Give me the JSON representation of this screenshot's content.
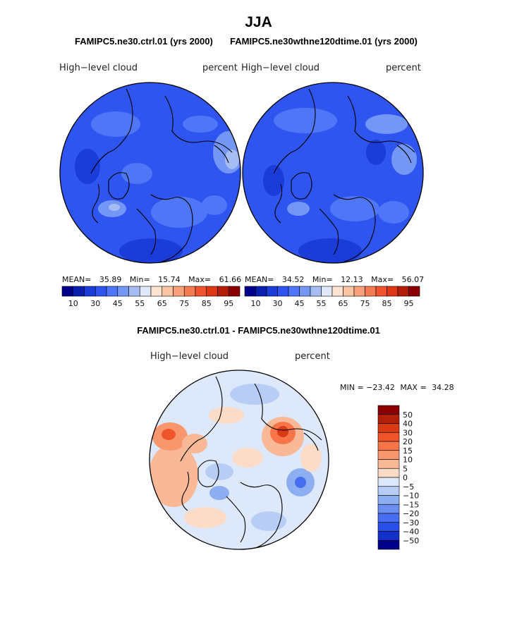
{
  "title": "JJA",
  "panels": [
    {
      "case_title": "FAMIPC5.ne30.ctrl.01 (yrs 2000)",
      "variable": "High−level cloud",
      "units": "percent",
      "stats": {
        "mean_label": "MEAN=",
        "mean": "35.89",
        "min_label": "Min=",
        "min": "15.74",
        "max_label": "Max=",
        "max": "61.66"
      }
    },
    {
      "case_title": "FAMIPC5.ne30wthne120dtime.01 (yrs 2000)",
      "variable": "High−level cloud",
      "units": "percent",
      "stats": {
        "mean_label": "MEAN=",
        "mean": "34.52",
        "min_label": "Min=",
        "min": "12.13",
        "max_label": "Max=",
        "max": "56.07"
      }
    }
  ],
  "abs_colorbar": {
    "colors": [
      "#00008b",
      "#0a1fb0",
      "#1a3cd8",
      "#2f55f0",
      "#4f76f7",
      "#7497f5",
      "#a6bdf3",
      "#dfe9f8",
      "#fde3d2",
      "#fbc4a3",
      "#f8a07a",
      "#f57c52",
      "#f05530",
      "#dc3816",
      "#b41e08",
      "#8b0000"
    ],
    "tick_labels": [
      "10",
      "30",
      "45",
      "55",
      "65",
      "75",
      "85",
      "95"
    ]
  },
  "difference": {
    "title": "FAMIPC5.ne30.ctrl.01 - FAMIPC5.ne30wthne120dtime.01",
    "variable": "High−level cloud",
    "units": "percent",
    "min_label": "MIN = ",
    "min": "−23.42",
    "max_label": "MAX = ",
    "max": "34.28",
    "colorbar": {
      "colors": [
        "#8b0000",
        "#b3200a",
        "#d93a14",
        "#f0542a",
        "#f77549",
        "#f8966e",
        "#f9b896",
        "#fcdcc6",
        "#dde8fa",
        "#b7cdf6",
        "#8eaef2",
        "#6a8ff0",
        "#476ef0",
        "#2a4fe8",
        "#1330c8",
        "#00008b"
      ],
      "tick_labels": [
        "50",
        "40",
        "30",
        "20",
        "15",
        "10",
        "5",
        "0",
        "−5",
        "−10",
        "−15",
        "−20",
        "−30",
        "−40",
        "−50"
      ]
    }
  },
  "chart_data": [
    {
      "type": "heatmap",
      "projection": "polar-stereographic (north pole)",
      "title": "FAMIPC5.ne30.ctrl.01 (yrs 2000)",
      "variable": "High−level cloud",
      "units": "percent",
      "mean": 35.89,
      "min": 15.74,
      "max": 61.66,
      "levels": [
        10,
        30,
        45,
        55,
        65,
        75,
        85,
        95
      ]
    },
    {
      "type": "heatmap",
      "projection": "polar-stereographic (north pole)",
      "title": "FAMIPC5.ne30wthne120dtime.01 (yrs 2000)",
      "variable": "High−level cloud",
      "units": "percent",
      "mean": 34.52,
      "min": 12.13,
      "max": 56.07,
      "levels": [
        10,
        30,
        45,
        55,
        65,
        75,
        85,
        95
      ]
    },
    {
      "type": "heatmap",
      "projection": "polar-stereographic (north pole)",
      "title": "FAMIPC5.ne30.ctrl.01 - FAMIPC5.ne30wthne120dtime.01",
      "variable": "High−level cloud",
      "units": "percent",
      "min": -23.42,
      "max": 34.28,
      "levels": [
        -50,
        -40,
        -30,
        -20,
        -15,
        -10,
        -5,
        0,
        5,
        10,
        15,
        20,
        30,
        40,
        50
      ]
    }
  ]
}
